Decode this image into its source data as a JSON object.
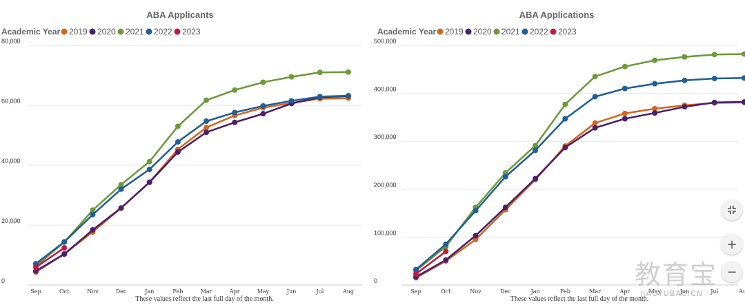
{
  "chart_data": [
    {
      "type": "line",
      "title": "ABA Applicants",
      "legend_title": "Academic Year",
      "legend_position": "top-left",
      "categories": [
        "Sep",
        "Oct",
        "Nov",
        "Dec",
        "Jan",
        "Feb",
        "Mar",
        "Apr",
        "May",
        "Jun",
        "Jul",
        "Aug"
      ],
      "ylim": [
        0,
        80000
      ],
      "yticks": [
        0,
        20000,
        40000,
        60000,
        80000
      ],
      "ytick_labels": [
        "0",
        "20,000",
        "40,000",
        "60,000",
        "80,000"
      ],
      "grid": true,
      "note": "These values reflect the last full day of the month.",
      "series": [
        {
          "name": "2019",
          "color": "#d4661e",
          "values": [
            4300,
            10400,
            17700,
            25700,
            34300,
            45300,
            52600,
            56600,
            59200,
            60800,
            62200,
            62400
          ]
        },
        {
          "name": "2020",
          "color": "#4b1f6b",
          "values": [
            4700,
            10300,
            18400,
            25700,
            34300,
            44400,
            51000,
            54300,
            57200,
            60600,
            62700,
            63100
          ]
        },
        {
          "name": "2021",
          "color": "#6e9a3a",
          "values": [
            6300,
            14300,
            25000,
            33500,
            41200,
            53000,
            61700,
            65100,
            67700,
            69500,
            71000,
            71100
          ]
        },
        {
          "name": "2022",
          "color": "#1f5f9a",
          "values": [
            7100,
            14400,
            23500,
            32000,
            38600,
            47800,
            54700,
            57600,
            59800,
            61500,
            62900,
            63200
          ]
        },
        {
          "name": "2023",
          "color": "#c8173f",
          "values": [
            5900,
            12400,
            null,
            null,
            null,
            null,
            null,
            null,
            null,
            null,
            null,
            null
          ]
        }
      ]
    },
    {
      "type": "line",
      "title": "ABA Applications",
      "legend_title": "Academic Year",
      "legend_position": "top-left",
      "categories": [
        "Sep",
        "Oct",
        "Nov",
        "Dec",
        "Jan",
        "Feb",
        "Mar",
        "Apr",
        "May",
        "Jun",
        "Jul",
        "Aug"
      ],
      "ylim": [
        0,
        500000
      ],
      "yticks": [
        0,
        100000,
        200000,
        300000,
        400000,
        500000
      ],
      "ytick_labels": [
        "0",
        "100,000",
        "200,000",
        "300,000",
        "400,000",
        "500,000"
      ],
      "grid": true,
      "note": "These values reflect the last full day of the month.",
      "series": [
        {
          "name": "2019",
          "color": "#d4661e",
          "values": [
            15000,
            50000,
            95000,
            157000,
            220000,
            290000,
            338000,
            358000,
            368000,
            375000,
            380000,
            381000
          ]
        },
        {
          "name": "2020",
          "color": "#4b1f6b",
          "values": [
            17000,
            52000,
            103000,
            162000,
            222000,
            287000,
            328000,
            347000,
            359000,
            372000,
            381000,
            382000
          ]
        },
        {
          "name": "2021",
          "color": "#6e9a3a",
          "values": [
            30000,
            80000,
            162000,
            234000,
            291000,
            377000,
            435000,
            456000,
            469000,
            476000,
            481000,
            482000
          ]
        },
        {
          "name": "2022",
          "color": "#1f5f9a",
          "values": [
            32000,
            85000,
            155000,
            226000,
            281000,
            347000,
            393000,
            410000,
            420000,
            427000,
            431000,
            432000
          ]
        },
        {
          "name": "2023",
          "color": "#c8173f",
          "values": [
            23000,
            70000,
            null,
            null,
            null,
            null,
            null,
            null,
            null,
            null,
            null,
            null
          ]
        }
      ]
    }
  ],
  "controls": {
    "reset_icon": "collapse-icon",
    "zoom_in_label": "+",
    "zoom_out_label": "−"
  },
  "watermark": {
    "logo_text": "教育宝",
    "domain": "JIAOYUBAO.CN"
  }
}
